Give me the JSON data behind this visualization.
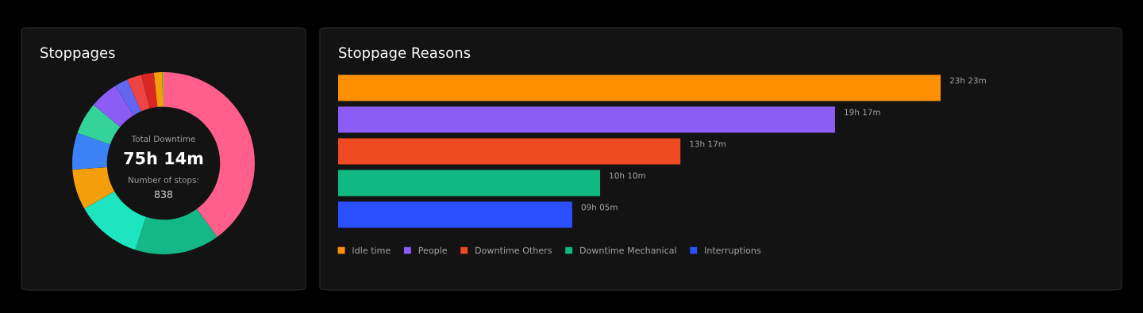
{
  "chart_data": [
    {
      "type": "donut",
      "title": "Stoppages",
      "categories": [
        null,
        null,
        null,
        null,
        null,
        null,
        null,
        null,
        null,
        null,
        null,
        null
      ],
      "values": [
        40,
        15,
        11.7,
        7.2,
        6.5,
        5.7,
        5,
        2.4,
        2.6,
        2.2,
        1.5,
        0.2
      ],
      "colors": [
        "#ff5f8a",
        "#14b886",
        "#1de5c0",
        "#f59e0b",
        "#3b82f6",
        "#34d399",
        "#8b5cf6",
        "#6366f1",
        "#ef4444",
        "#dc2626",
        "#f59e0b",
        "#84cc16"
      ],
      "annotations": [
        "Total Downtime",
        "75h 14m",
        "Number of stops:",
        "838"
      ]
    },
    {
      "type": "bar",
      "orientation": "horizontal",
      "title": "Stoppage Reasons",
      "categories": [
        null,
        null,
        null,
        null,
        null
      ],
      "series": [
        {
          "name": "Idle time",
          "color": "#ff9100",
          "values": [
            23.383,
            null,
            null,
            null,
            null
          ],
          "value_labels": [
            "23h 23m",
            null,
            null,
            null,
            null
          ]
        },
        {
          "name": "People",
          "color": "#8b5cf6",
          "values": [
            null,
            19.283,
            null,
            null,
            null
          ],
          "value_labels": [
            null,
            "19h 17m",
            null,
            null,
            null
          ]
        },
        {
          "name": "Downtime Others",
          "color": "#f04a23",
          "values": [
            null,
            null,
            13.283,
            null,
            null
          ],
          "value_labels": [
            null,
            null,
            "13h 17m",
            null,
            null
          ]
        },
        {
          "name": "Downtime Mechanical",
          "color": "#10b981",
          "values": [
            null,
            null,
            null,
            10.167,
            null
          ],
          "value_labels": [
            null,
            null,
            null,
            "10h 10m",
            null
          ]
        },
        {
          "name": "Interruptions",
          "color": "#2b50ff",
          "values": [
            null,
            null,
            null,
            null,
            9.083
          ],
          "value_labels": [
            null,
            null,
            null,
            null,
            "09h 05m"
          ]
        }
      ],
      "stacked": true,
      "legend": "bottom",
      "tick_labels": false
    }
  ]
}
